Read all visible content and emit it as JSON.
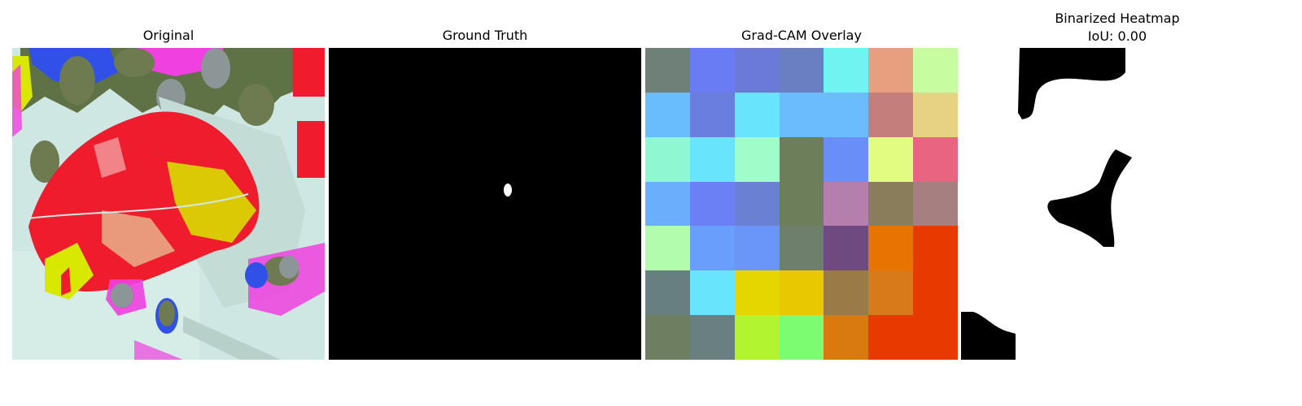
{
  "panels": [
    {
      "title": "Original",
      "subtitle": ""
    },
    {
      "title": "Ground Truth",
      "subtitle": ""
    },
    {
      "title": "Grad-CAM Overlay",
      "subtitle": ""
    },
    {
      "title": "Binarized Heatmap",
      "subtitle": "IoU: 0.00"
    }
  ],
  "gradcam_grid": [
    [
      "#6f8078",
      "#6a7cf4",
      "#6a7ad6",
      "#6a7ec2",
      "#70f4f2",
      "#e89f80",
      "#c8fca0"
    ],
    [
      "#6abdfc",
      "#6a7ee0",
      "#68e4fc",
      "#6abcfc",
      "#6abcfc",
      "#c47f7c",
      "#e6d282"
    ],
    [
      "#8ff8d2",
      "#68e4fc",
      "#a0fcc8",
      "#6d7f5a",
      "#6a8ef8",
      "#e1fc80",
      "#e86480"
    ],
    [
      "#6aaefc",
      "#6a80f4",
      "#6a80d2",
      "#6d7f5a",
      "#b47fac",
      "#8a7d5c",
      "#a68080"
    ],
    [
      "#b2fcae",
      "#6a9efc",
      "#6a96fa",
      "#6e7f6c",
      "#6e4a80",
      "#e87400",
      "#e83a00"
    ],
    [
      "#687f80",
      "#68e4fc",
      "#e6d600",
      "#e8c800",
      "#9a7a46",
      "#d87a1a",
      "#e83a00"
    ],
    [
      "#6d7f60",
      "#6a7f80",
      "#b2f430",
      "#7cfc70",
      "#d87a10",
      "#e83a00",
      "#e83a00"
    ]
  ],
  "colors": {
    "background": "#ffffff",
    "mask_fg": "#ffffff",
    "mask_bg": "#000000",
    "orig_red": "#ee1c2c",
    "orig_pale": "#cfe7e3",
    "orig_yellow": "#d8e800",
    "orig_magenta": "#f040e0",
    "orig_blue": "#3050e8",
    "orig_olive": "#6e7a50",
    "orig_gray": "#8d9696"
  }
}
